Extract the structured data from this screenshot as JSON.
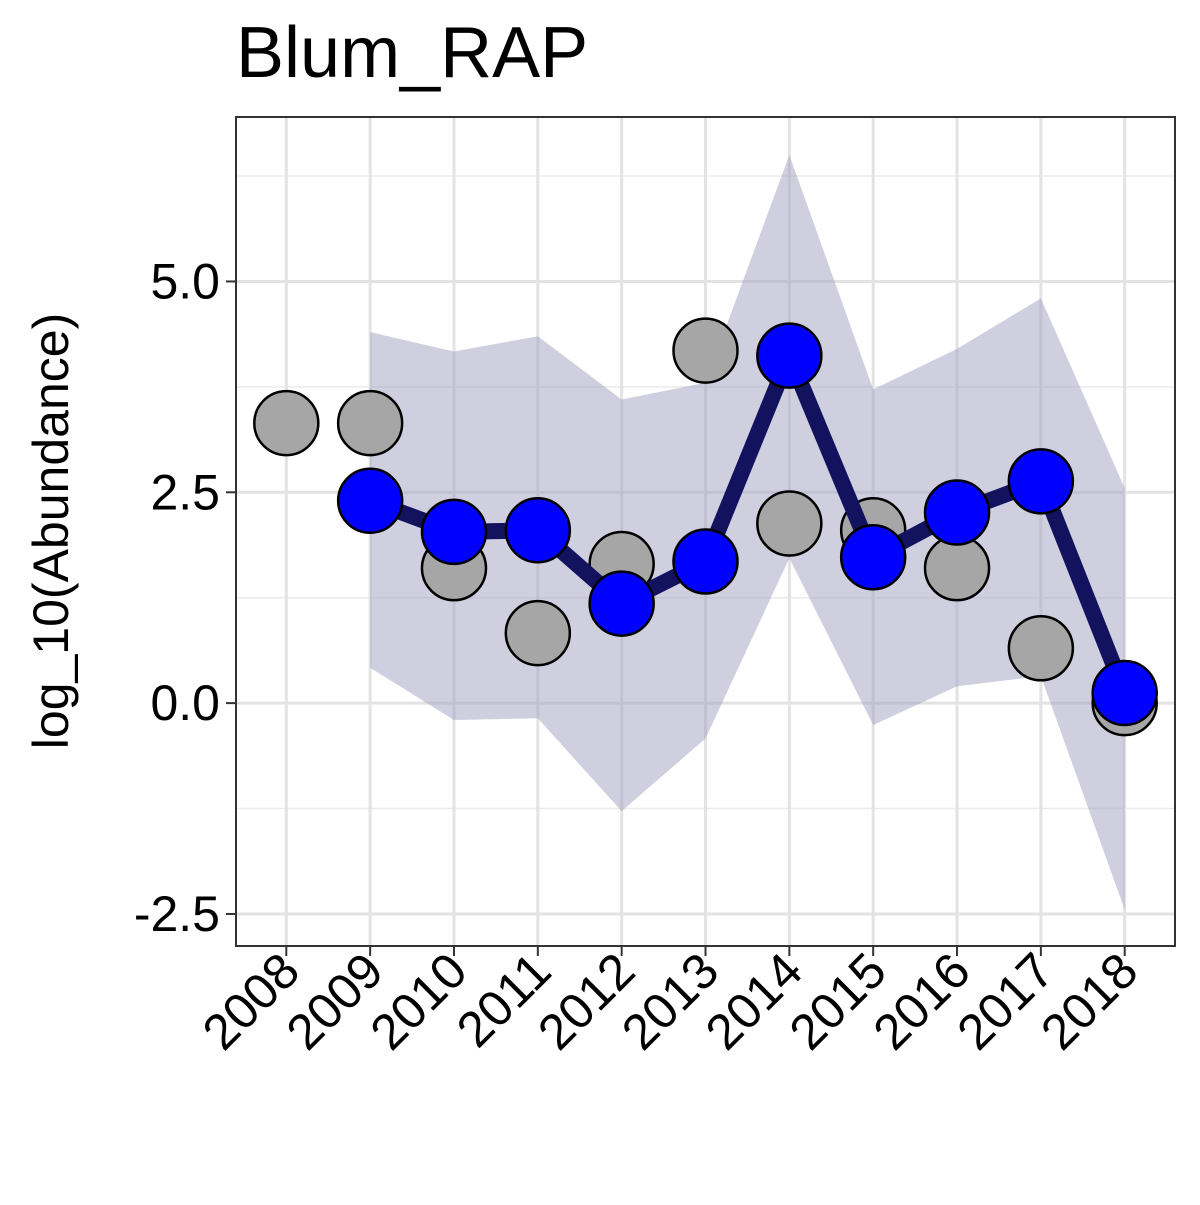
{
  "chart_data": {
    "type": "line",
    "title": "Blum_RAP",
    "xlabel": "",
    "ylabel": "log_10(Abundance)",
    "x": [
      2008,
      2009,
      2010,
      2011,
      2012,
      2013,
      2014,
      2015,
      2016,
      2017,
      2018
    ],
    "x_tick_labels": [
      "2008",
      "2009",
      "2010",
      "2011",
      "2012",
      "2013",
      "2014",
      "2015",
      "2016",
      "2017",
      "2018"
    ],
    "y_ticks": [
      -2.5,
      0.0,
      2.5,
      5.0
    ],
    "y_tick_labels": [
      "-2.5",
      "0.0",
      "2.5",
      "5.0"
    ],
    "xlim": [
      2007.4,
      2018.6
    ],
    "ylim": [
      -2.88,
      6.95
    ],
    "grid": true,
    "legend": "none",
    "series": [
      {
        "kind": "ribbon",
        "color": "#a0a0c0",
        "x": [
          2009,
          2010,
          2011,
          2012,
          2013,
          2014,
          2015,
          2016,
          2017,
          2018
        ],
        "lower": [
          0.42,
          -0.2,
          -0.18,
          -1.28,
          -0.42,
          1.72,
          -0.26,
          0.2,
          0.32,
          -2.45
        ],
        "upper": [
          4.4,
          4.17,
          4.35,
          3.6,
          3.8,
          6.5,
          3.72,
          4.2,
          4.8,
          2.55
        ]
      },
      {
        "kind": "observed-points",
        "color": "#a6a6a6",
        "x": [
          2008,
          2009,
          2010,
          2011,
          2012,
          2013,
          2014,
          2015,
          2016,
          2017,
          2018
        ],
        "values": [
          3.32,
          3.32,
          1.6,
          0.83,
          1.65,
          4.18,
          2.13,
          2.05,
          1.6,
          0.65,
          0.0
        ]
      },
      {
        "kind": "estimate-line",
        "line_color": "#12125e",
        "point_color": "#0000ff",
        "x": [
          2009,
          2010,
          2011,
          2012,
          2013,
          2014,
          2015,
          2016,
          2017,
          2018
        ],
        "values": [
          2.4,
          2.03,
          2.05,
          1.18,
          1.68,
          4.12,
          1.73,
          2.26,
          2.63,
          0.12
        ]
      }
    ]
  }
}
